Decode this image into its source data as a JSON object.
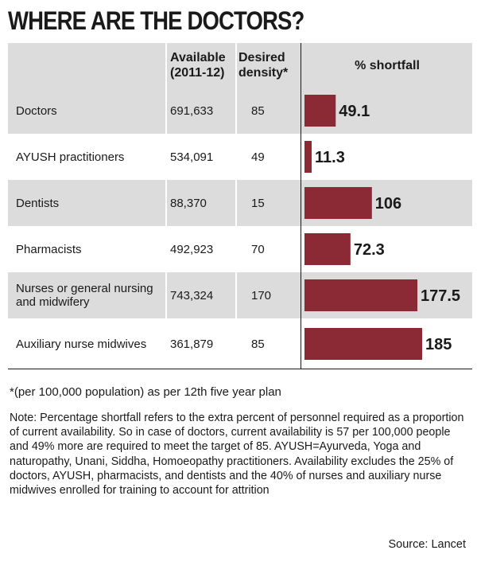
{
  "title": "WHERE ARE THE DOCTORS?",
  "table": {
    "headers": {
      "available_l1": "Available",
      "available_l2": "(2011-12)",
      "density_l1": "Desired",
      "density_l2": "density*",
      "shortfall": "% shortfall"
    },
    "rows": [
      {
        "label": "Doctors",
        "available": "691,633",
        "density": "85"
      },
      {
        "label": "AYUSH practitioners",
        "available": "534,091",
        "density": "49"
      },
      {
        "label": "Dentists",
        "available": "88,370",
        "density": "15"
      },
      {
        "label": "Pharmacists",
        "available": "492,923",
        "density": "70"
      },
      {
        "label": "Nurses or general nursing and midwifery",
        "available": "743,324",
        "density": "170"
      },
      {
        "label": "Auxiliary nurse midwives",
        "available": "361,879",
        "density": "85"
      }
    ]
  },
  "chart_data": {
    "type": "bar",
    "orientation": "horizontal",
    "title": "% shortfall",
    "categories": [
      "Doctors",
      "AYUSH practitioners",
      "Dentists",
      "Pharmacists",
      "Nurses or general nursing and midwifery",
      "Auxiliary nurse midwives"
    ],
    "values": [
      49.1,
      11.3,
      106,
      72.3,
      177.5,
      185
    ],
    "value_labels": [
      "49.1",
      "11.3",
      "106",
      "72.3",
      "177.5",
      "185"
    ],
    "xlim": [
      0,
      185
    ],
    "bar_color": "#8b2a35"
  },
  "footnote": "*(per 100,000 population) as per 12th five year plan",
  "note": "Note: Percentage shortfall refers to the extra percent of personnel required as a proportion of current availability. So in case of doctors, current availability is 57 per 100,000 people and 49% more are required to meet the target of 85. AYUSH=Ayurveda, Yoga and naturopathy, Unani, Siddha, Homoeopathy practitioners. Availability excludes the 25% of doctors, AYUSH, pharmacists, and dentists and the 40% of nurses and auxiliary nurse midwives enrolled for training to account for attrition",
  "source": "Source: Lancet",
  "colors": {
    "row_shade": "#dcdcdc",
    "bar": "#8b2a35",
    "text": "#1a1a1a"
  }
}
